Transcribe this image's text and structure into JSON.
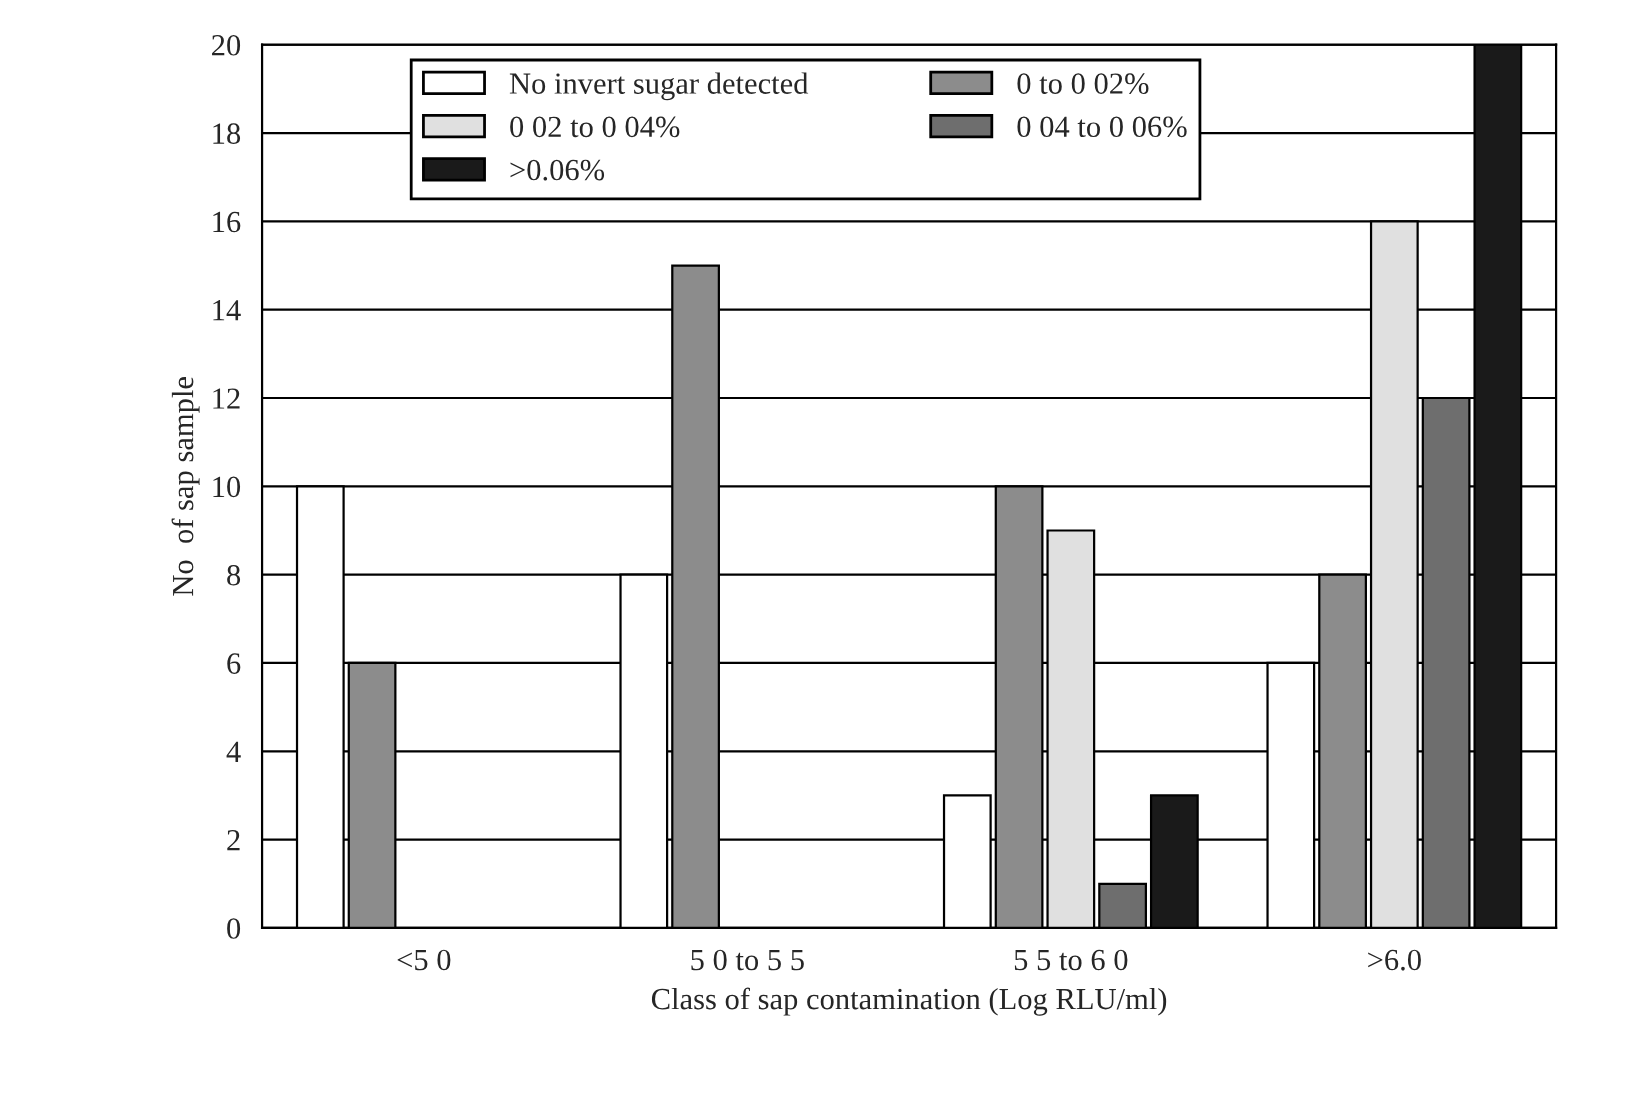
{
  "chart_data": {
    "type": "bar",
    "xlabel": "Class of sap contamination (Log RLU/ml)",
    "ylabel": "No  of sap sample",
    "categories": [
      "<5 0",
      "5 0 to 5 5",
      "5 5 to 6 0",
      ">6.0"
    ],
    "series": [
      {
        "name": "No invert sugar detected",
        "color": "#ffffff",
        "values": [
          10,
          8,
          3,
          6
        ]
      },
      {
        "name": "0 to 0 02%",
        "color": "#8c8c8c",
        "values": [
          6,
          15,
          10,
          8
        ]
      },
      {
        "name": "0 02 to 0 04%",
        "color": "#e0e0e0",
        "values": [
          null,
          null,
          9,
          16
        ]
      },
      {
        "name": "0 04 to 0 06%",
        "color": "#6e6e6e",
        "values": [
          null,
          null,
          1,
          12
        ]
      },
      {
        "name": ">0.06%",
        "color": "#1a1a1a",
        "values": [
          null,
          null,
          3,
          20
        ]
      }
    ],
    "ylim": [
      0,
      20
    ],
    "yticks": [
      0,
      2,
      4,
      6,
      8,
      10,
      12,
      14,
      16,
      18,
      20
    ],
    "grid": "y",
    "legend": "top"
  }
}
